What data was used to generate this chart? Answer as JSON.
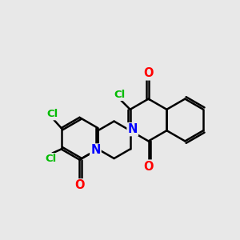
{
  "background_color": "#e8e8e8",
  "bond_color": "#000000",
  "bond_width": 1.8,
  "atom_colors": {
    "Cl": "#00bb00",
    "O": "#ff0000",
    "N": "#0000ff",
    "C": "#000000"
  },
  "font_size": 9.5,
  "fig_width": 3.0,
  "fig_height": 3.0,
  "dbo": 0.055
}
